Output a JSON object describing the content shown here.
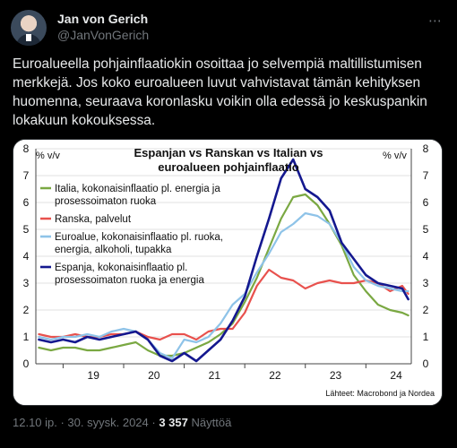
{
  "tweet": {
    "author_name": "Jan von Gerich",
    "author_handle": "@JanVonGerich",
    "more_icon": "more-icon",
    "text": "Euroalueella pohjainflaatiokin osoittaa jo selvempiä maltillistumisen merkkejä. Jos koko euroalueen luvut vahvistavat tämän kehityksen huomenna, seuraava koronlasku voikin olla edessä jo keskuspankin lokakuun kokouksessa.",
    "timestamp": "12.10 ip. · 30. syysk. 2024 ·",
    "views_count": "3 357",
    "views_label": "Näyttöä"
  },
  "chart_data": {
    "type": "line",
    "title_line1": "Espanjan vs Ranskan vs Italian vs",
    "title_line2": "euroalueen pohjainflaatio",
    "ylabel_left": "% v/v",
    "ylabel_right": "% v/v",
    "ylim": [
      0,
      8
    ],
    "yticks": [
      "0",
      "1",
      "2",
      "3",
      "4",
      "5",
      "6",
      "7",
      "8"
    ],
    "xlim": [
      2018.55,
      2024.75
    ],
    "xticks": [
      {
        "label": "19",
        "x": 2019.5
      },
      {
        "label": "20",
        "x": 2020.5
      },
      {
        "label": "21",
        "x": 2021.5
      },
      {
        "label": "22",
        "x": 2022.5
      },
      {
        "label": "23",
        "x": 2023.5
      },
      {
        "label": "24",
        "x": 2024.5
      }
    ],
    "source": "Lähteet: Macrobond ja Nordea",
    "series": [
      {
        "name": "Italia, kokonaisinflaatio pl. energia ja prosessoimaton ruoka",
        "color": "#7aa842",
        "points": [
          [
            2018.6,
            0.6
          ],
          [
            2018.8,
            0.5
          ],
          [
            2019.0,
            0.6
          ],
          [
            2019.2,
            0.6
          ],
          [
            2019.4,
            0.5
          ],
          [
            2019.6,
            0.5
          ],
          [
            2019.8,
            0.6
          ],
          [
            2020.0,
            0.7
          ],
          [
            2020.2,
            0.8
          ],
          [
            2020.4,
            0.5
          ],
          [
            2020.6,
            0.3
          ],
          [
            2020.8,
            0.3
          ],
          [
            2021.0,
            0.4
          ],
          [
            2021.2,
            0.6
          ],
          [
            2021.4,
            0.8
          ],
          [
            2021.6,
            1.1
          ],
          [
            2021.8,
            1.5
          ],
          [
            2022.0,
            2.3
          ],
          [
            2022.2,
            3.2
          ],
          [
            2022.4,
            4.3
          ],
          [
            2022.6,
            5.4
          ],
          [
            2022.8,
            6.2
          ],
          [
            2023.0,
            6.3
          ],
          [
            2023.2,
            5.9
          ],
          [
            2023.4,
            5.2
          ],
          [
            2023.6,
            4.4
          ],
          [
            2023.8,
            3.3
          ],
          [
            2024.0,
            2.7
          ],
          [
            2024.2,
            2.2
          ],
          [
            2024.4,
            2.0
          ],
          [
            2024.6,
            1.9
          ],
          [
            2024.7,
            1.8
          ]
        ]
      },
      {
        "name": "Ranska, palvelut",
        "color": "#e8514d",
        "points": [
          [
            2018.6,
            1.1
          ],
          [
            2018.8,
            1.0
          ],
          [
            2019.0,
            1.0
          ],
          [
            2019.2,
            1.1
          ],
          [
            2019.4,
            1.0
          ],
          [
            2019.6,
            1.0
          ],
          [
            2019.8,
            1.1
          ],
          [
            2020.0,
            1.1
          ],
          [
            2020.2,
            1.2
          ],
          [
            2020.4,
            1.0
          ],
          [
            2020.6,
            0.9
          ],
          [
            2020.8,
            1.1
          ],
          [
            2021.0,
            1.1
          ],
          [
            2021.2,
            0.9
          ],
          [
            2021.4,
            1.2
          ],
          [
            2021.6,
            1.3
          ],
          [
            2021.8,
            1.3
          ],
          [
            2022.0,
            1.9
          ],
          [
            2022.2,
            2.9
          ],
          [
            2022.4,
            3.5
          ],
          [
            2022.6,
            3.2
          ],
          [
            2022.8,
            3.1
          ],
          [
            2023.0,
            2.8
          ],
          [
            2023.2,
            3.0
          ],
          [
            2023.4,
            3.1
          ],
          [
            2023.6,
            3.0
          ],
          [
            2023.8,
            3.0
          ],
          [
            2024.0,
            3.1
          ],
          [
            2024.2,
            3.0
          ],
          [
            2024.4,
            2.7
          ],
          [
            2024.6,
            2.9
          ],
          [
            2024.7,
            2.6
          ]
        ]
      },
      {
        "name": "Euroalue, kokonaisinflaatio pl. ruoka, energia, alkoholi, tupakka",
        "color": "#8ec3e8",
        "points": [
          [
            2018.6,
            1.0
          ],
          [
            2018.8,
            0.9
          ],
          [
            2019.0,
            1.0
          ],
          [
            2019.2,
            1.0
          ],
          [
            2019.4,
            1.1
          ],
          [
            2019.6,
            1.0
          ],
          [
            2019.8,
            1.2
          ],
          [
            2020.0,
            1.3
          ],
          [
            2020.2,
            1.2
          ],
          [
            2020.4,
            0.9
          ],
          [
            2020.6,
            0.4
          ],
          [
            2020.8,
            0.2
          ],
          [
            2021.0,
            0.9
          ],
          [
            2021.2,
            0.8
          ],
          [
            2021.4,
            1.0
          ],
          [
            2021.6,
            1.5
          ],
          [
            2021.8,
            2.2
          ],
          [
            2022.0,
            2.6
          ],
          [
            2022.2,
            3.4
          ],
          [
            2022.4,
            4.1
          ],
          [
            2022.6,
            4.9
          ],
          [
            2022.8,
            5.2
          ],
          [
            2023.0,
            5.6
          ],
          [
            2023.2,
            5.5
          ],
          [
            2023.4,
            5.2
          ],
          [
            2023.6,
            4.5
          ],
          [
            2023.8,
            3.6
          ],
          [
            2024.0,
            3.1
          ],
          [
            2024.2,
            2.9
          ],
          [
            2024.4,
            2.8
          ],
          [
            2024.6,
            2.7
          ],
          [
            2024.7,
            2.7
          ]
        ]
      },
      {
        "name": "Espanja, kokonaisinflaatio pl. prosessoimaton ruoka ja energia",
        "color": "#14188f",
        "points": [
          [
            2018.6,
            0.9
          ],
          [
            2018.8,
            0.8
          ],
          [
            2019.0,
            0.9
          ],
          [
            2019.2,
            0.8
          ],
          [
            2019.4,
            1.0
          ],
          [
            2019.6,
            0.9
          ],
          [
            2019.8,
            1.0
          ],
          [
            2020.0,
            1.1
          ],
          [
            2020.2,
            1.2
          ],
          [
            2020.4,
            0.9
          ],
          [
            2020.6,
            0.3
          ],
          [
            2020.8,
            0.1
          ],
          [
            2021.0,
            0.4
          ],
          [
            2021.2,
            0.1
          ],
          [
            2021.4,
            0.5
          ],
          [
            2021.6,
            0.9
          ],
          [
            2021.8,
            1.6
          ],
          [
            2022.0,
            2.5
          ],
          [
            2022.2,
            4.0
          ],
          [
            2022.4,
            5.4
          ],
          [
            2022.6,
            6.9
          ],
          [
            2022.8,
            7.6
          ],
          [
            2023.0,
            6.5
          ],
          [
            2023.2,
            6.2
          ],
          [
            2023.4,
            5.7
          ],
          [
            2023.6,
            4.5
          ],
          [
            2023.8,
            3.9
          ],
          [
            2024.0,
            3.3
          ],
          [
            2024.2,
            3.0
          ],
          [
            2024.4,
            2.9
          ],
          [
            2024.6,
            2.8
          ],
          [
            2024.7,
            2.4
          ]
        ]
      }
    ]
  }
}
